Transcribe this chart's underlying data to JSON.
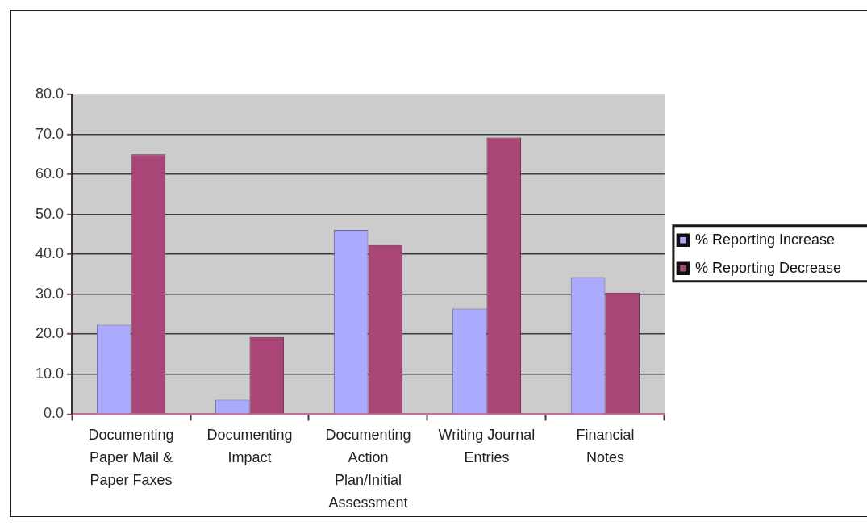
{
  "chart_data": {
    "type": "bar",
    "categories": [
      "Documenting Paper Mail & Paper Faxes",
      "Documenting Impact",
      "Documenting Action Plan/Initial Assessment",
      "Writing Journal Entries",
      "Financial Notes"
    ],
    "series": [
      {
        "name": "% Reporting Increase",
        "color": "#aaaaff",
        "values": [
          22.4,
          3.6,
          46.1,
          26.4,
          34.3
        ]
      },
      {
        "name": "% Reporting Decrease",
        "color": "#aa4677",
        "values": [
          65.0,
          19.3,
          42.3,
          69.2,
          30.4
        ]
      }
    ],
    "ylim": [
      0,
      80
    ],
    "yticks": [
      {
        "value": 0,
        "label": "0.0"
      },
      {
        "value": 10,
        "label": "10.0"
      },
      {
        "value": 20,
        "label": "20.0"
      },
      {
        "value": 30,
        "label": "30.0"
      },
      {
        "value": 40,
        "label": "40.0"
      },
      {
        "value": 50,
        "label": "50.0"
      },
      {
        "value": 60,
        "label": "60.0"
      },
      {
        "value": 70,
        "label": "70.0"
      },
      {
        "value": 80,
        "label": "80.0"
      }
    ],
    "grid": "y",
    "legend": "right"
  }
}
